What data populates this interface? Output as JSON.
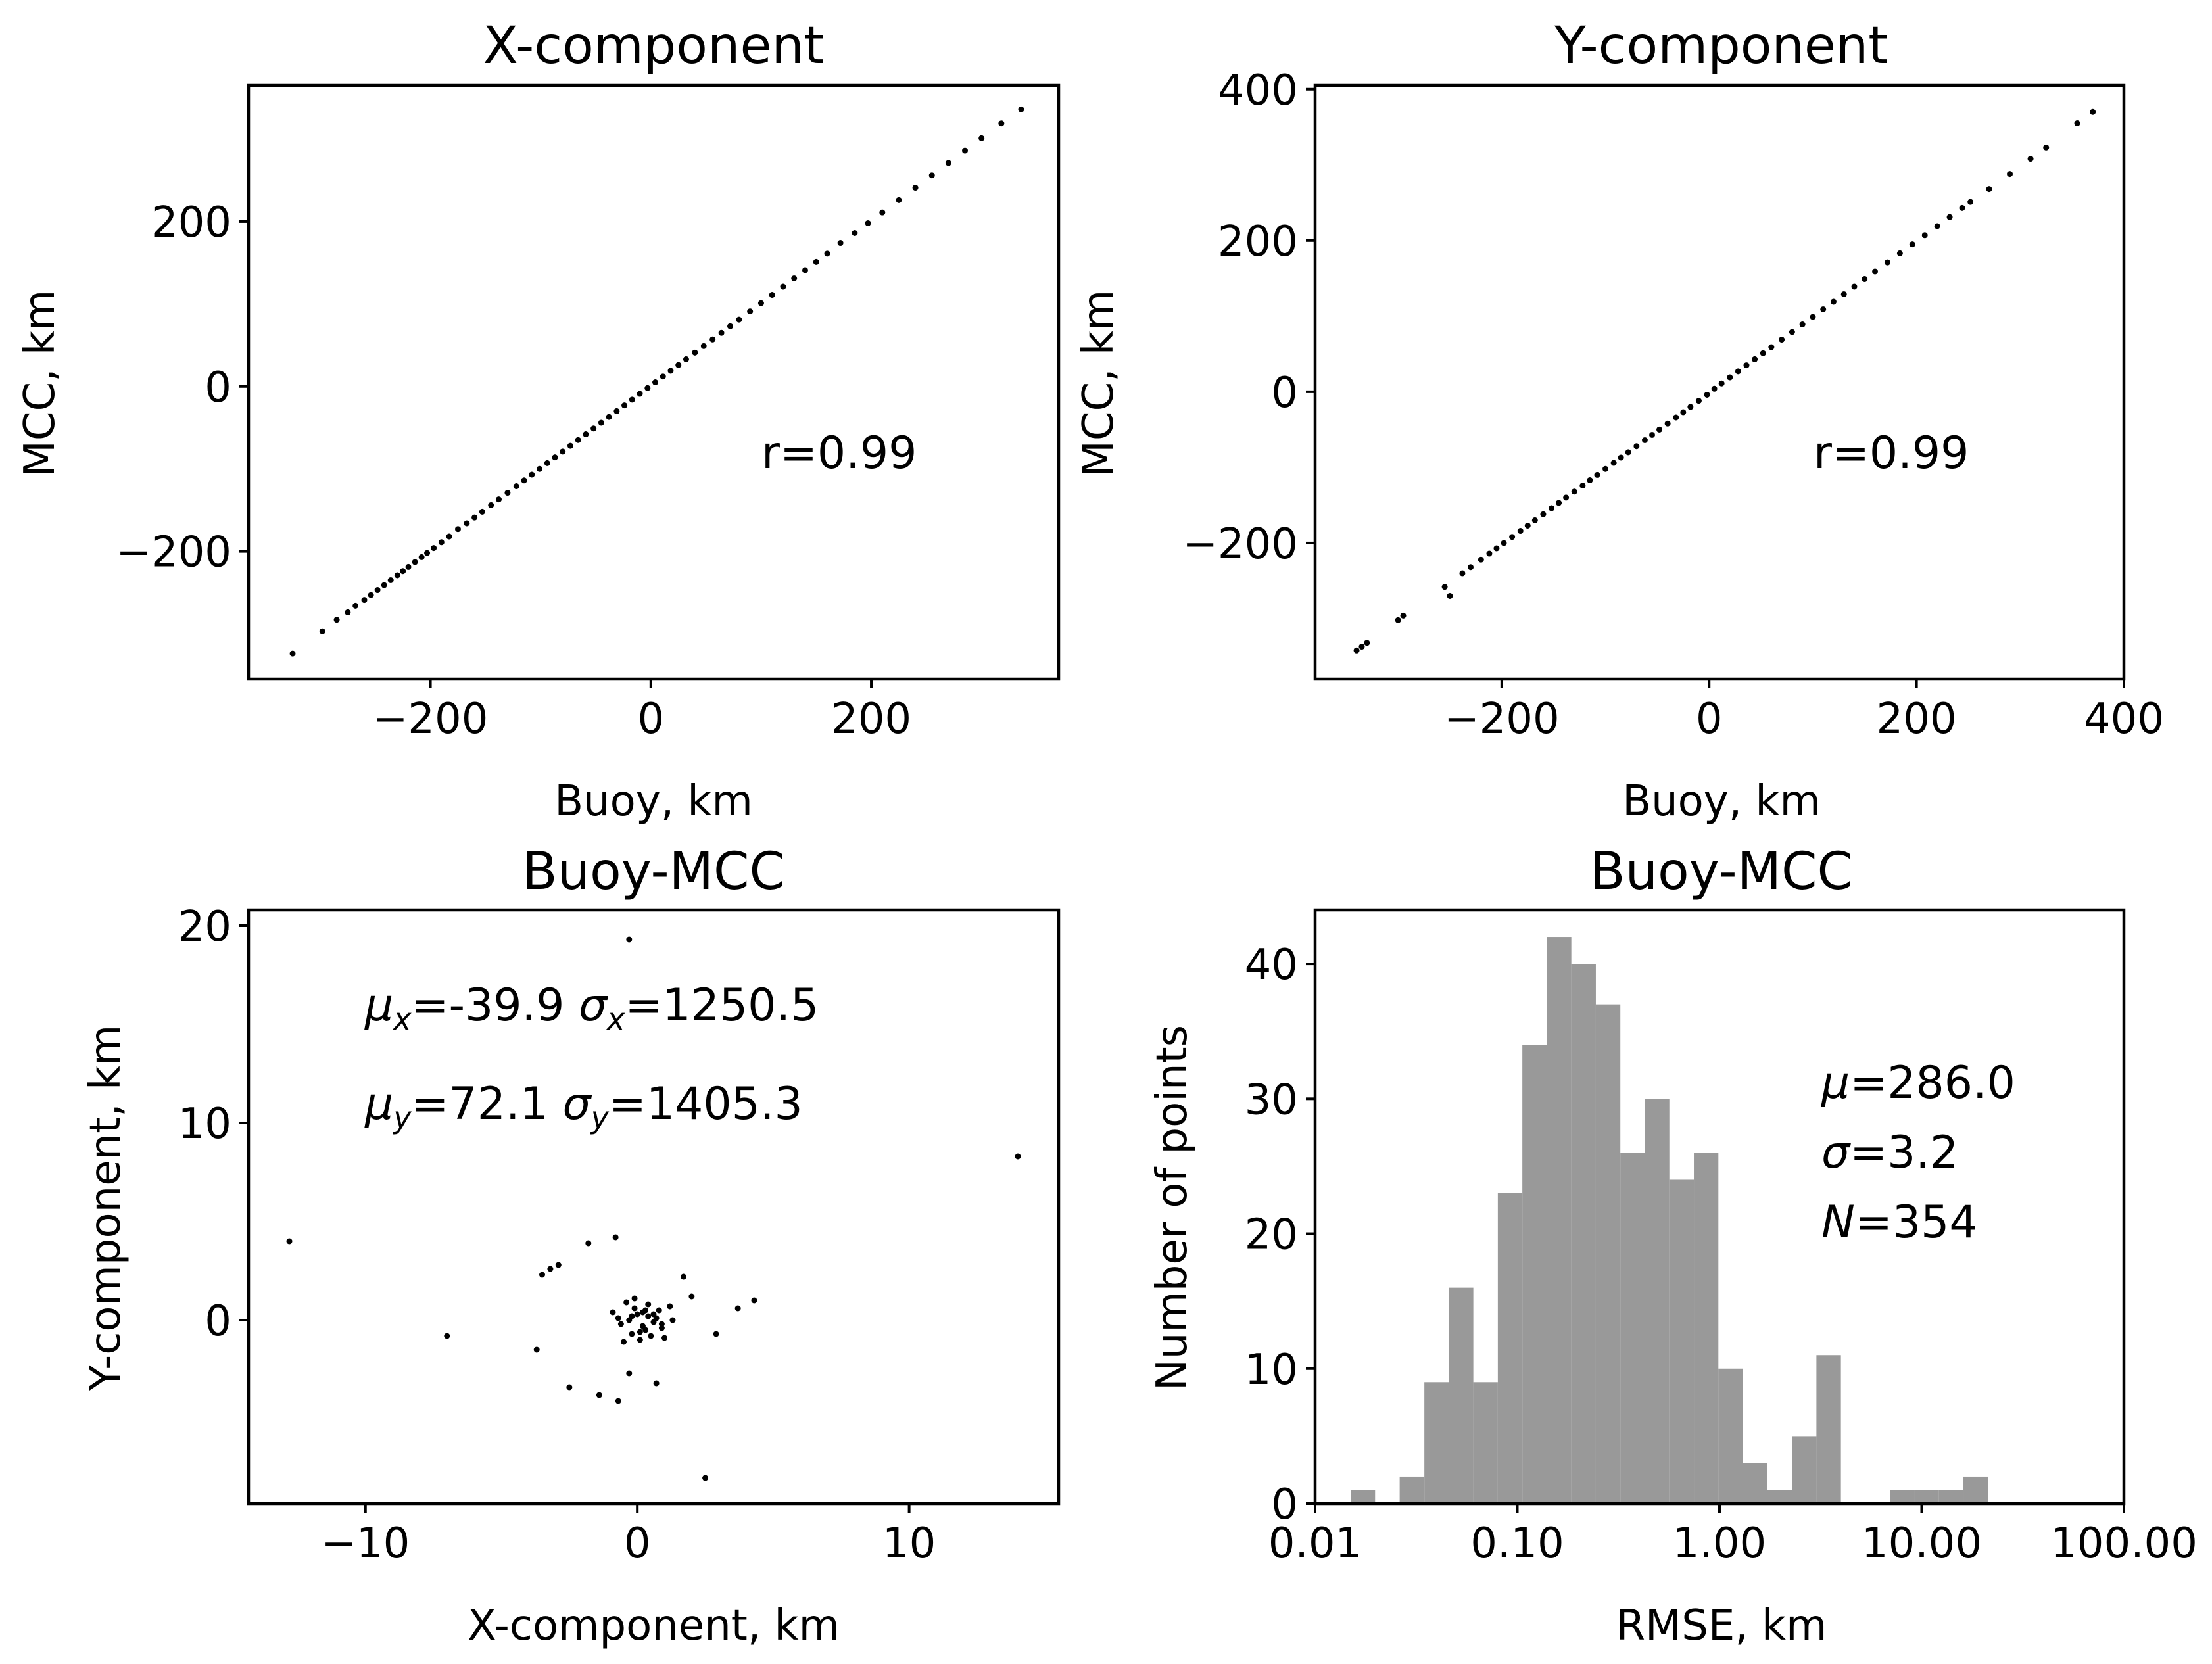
{
  "figure": {
    "panels": [
      "x_component",
      "y_component",
      "diff_scatter",
      "rmse_hist"
    ]
  },
  "chart_data": [
    {
      "id": "x_component",
      "type": "scatter",
      "title": "X-component",
      "xlabel": "Buoy, km",
      "ylabel": "MCC, km",
      "xlim": [
        -365,
        370
      ],
      "ylim": [
        -355,
        365
      ],
      "xticks": [
        -200,
        0,
        200
      ],
      "xtick_labels": [
        "−200",
        "0",
        "200"
      ],
      "yticks": [
        -200,
        0,
        200
      ],
      "ytick_labels": [
        "−200",
        "0",
        "200"
      ],
      "grid": false,
      "annotation": "r=0.99",
      "marker_color": "#000000",
      "series": [
        {
          "x": [
            -325,
            -298,
            -285,
            -275,
            -268,
            -260,
            -254,
            -248,
            -242,
            -236,
            -230,
            -225,
            -220,
            -214,
            -208,
            -203,
            -197,
            -190,
            -183,
            -175,
            -167,
            -160,
            -153,
            -145,
            -138,
            -130,
            -122,
            -115,
            -108,
            -101,
            -94,
            -87,
            -80,
            -73,
            -66,
            -59,
            -52,
            -45,
            -38,
            -31,
            -24,
            -17,
            -10,
            -3,
            4,
            11,
            18,
            25,
            32,
            40,
            48,
            56,
            64,
            72,
            80,
            90,
            100,
            110,
            120,
            130,
            140,
            150,
            160,
            172,
            185,
            197,
            210,
            225,
            240,
            255,
            270,
            285,
            300,
            318,
            336
          ],
          "y": [
            -324,
            -297,
            -283,
            -274,
            -266,
            -259,
            -253,
            -247,
            -241,
            -235,
            -229,
            -224,
            -219,
            -213,
            -207,
            -202,
            -196,
            -189,
            -182,
            -173,
            -166,
            -159,
            -152,
            -144,
            -137,
            -129,
            -121,
            -114,
            -107,
            -100,
            -93,
            -86,
            -79,
            -72,
            -65,
            -58,
            -51,
            -44,
            -37,
            -30,
            -23,
            -16,
            -9,
            -2,
            5,
            12,
            19,
            26,
            33,
            41,
            49,
            57,
            65,
            73,
            81,
            91,
            101,
            111,
            121,
            131,
            141,
            151,
            161,
            174,
            186,
            198,
            211,
            226,
            241,
            256,
            271,
            286,
            301,
            319,
            336
          ]
        }
      ]
    },
    {
      "id": "y_component",
      "type": "scatter",
      "title": "Y-component",
      "xlabel": "Buoy, km",
      "ylabel": "MCC, km",
      "xlim": [
        -380,
        400
      ],
      "ylim": [
        -380,
        405
      ],
      "xticks": [
        -200,
        0,
        200,
        400
      ],
      "xtick_labels": [
        "−200",
        "0",
        "200",
        "400"
      ],
      "yticks": [
        -200,
        0,
        200,
        400
      ],
      "ytick_labels": [
        "−200",
        "0",
        "200",
        "400"
      ],
      "grid": false,
      "annotation": "r=0.99",
      "marker_color": "#000000",
      "series": [
        {
          "x": [
            -340,
            -335,
            -330,
            -300,
            -295,
            -255,
            -250,
            -238,
            -230,
            -220,
            -212,
            -205,
            -198,
            -190,
            -182,
            -175,
            -168,
            -160,
            -152,
            -145,
            -138,
            -130,
            -122,
            -115,
            -108,
            -100,
            -92,
            -85,
            -78,
            -70,
            -62,
            -55,
            -48,
            -40,
            -32,
            -25,
            -18,
            -10,
            -2,
            5,
            12,
            20,
            28,
            36,
            44,
            52,
            60,
            70,
            80,
            90,
            100,
            110,
            120,
            130,
            140,
            150,
            160,
            172,
            184,
            196,
            208,
            220,
            232,
            244,
            252,
            270,
            290,
            310,
            325,
            355,
            370
          ],
          "y": [
            -342,
            -337,
            -332,
            -302,
            -296,
            -258,
            -270,
            -240,
            -232,
            -222,
            -214,
            -207,
            -200,
            -192,
            -184,
            -177,
            -170,
            -162,
            -154,
            -147,
            -140,
            -132,
            -124,
            -117,
            -110,
            -102,
            -94,
            -87,
            -80,
            -72,
            -64,
            -57,
            -50,
            -42,
            -34,
            -27,
            -20,
            -12,
            -4,
            4,
            11,
            19,
            27,
            35,
            43,
            51,
            59,
            69,
            79,
            89,
            99,
            109,
            119,
            129,
            139,
            149,
            159,
            171,
            183,
            195,
            207,
            219,
            231,
            243,
            251,
            268,
            288,
            308,
            323,
            355,
            370
          ]
        }
      ]
    },
    {
      "id": "diff_scatter",
      "type": "scatter",
      "title": "Buoy-MCC",
      "xlabel": "X-component, km",
      "ylabel": "Y-component, km",
      "xlim": [
        -14.3,
        15.5
      ],
      "ylim": [
        -9.3,
        20.8
      ],
      "xticks": [
        -10,
        0,
        10
      ],
      "xtick_labels": [
        "−10",
        "0",
        "10"
      ],
      "yticks": [
        0,
        10,
        20
      ],
      "ytick_labels": [
        "0",
        "10",
        "20"
      ],
      "grid": false,
      "annotation_lines": [
        {
          "mu_label": "μ",
          "mu_sub": "x",
          "mu_value": "=-39.9 ",
          "sigma_label": "σ",
          "sigma_sub": "x",
          "sigma_value": "=1250.5"
        },
        {
          "mu_label": "μ",
          "mu_sub": "y",
          "mu_value": "=72.1 ",
          "sigma_label": "σ",
          "sigma_sub": "y",
          "sigma_value": "=1405.3"
        }
      ],
      "marker_color": "#000000",
      "series": [
        {
          "x": [
            -0.3,
            14.0,
            -12.8,
            -7.0,
            -3.5,
            -3.2,
            -2.9,
            -0.8,
            -1.8,
            -3.7,
            -2.5,
            -1.4,
            -0.7,
            -0.3,
            0.7,
            1.7,
            2.0,
            3.7,
            4.3,
            2.9,
            2.5,
            -0.4,
            -0.1,
            0.3,
            0.6,
            0.9,
            1.2,
            -0.6,
            -0.2,
            0.1,
            0.4,
            0.7,
            -0.9,
            1.0,
            0.2,
            -0.5,
            0.5,
            -0.3,
            0.8,
            0.0,
            0.3,
            -0.1,
            0.6,
            0.2,
            -0.7,
            1.3,
            0.9,
            -0.2,
            0.4,
            0.1
          ],
          "y": [
            19.3,
            8.3,
            4.0,
            -0.8,
            2.3,
            2.6,
            2.8,
            4.2,
            3.9,
            -1.5,
            -3.4,
            -3.8,
            -4.1,
            -2.7,
            -3.2,
            2.2,
            1.2,
            0.6,
            1.0,
            -0.7,
            -8.0,
            0.9,
            1.1,
            0.5,
            0.3,
            -0.4,
            0.7,
            -0.2,
            0.2,
            -0.6,
            0.8,
            0.1,
            0.4,
            -0.9,
            -0.3,
            -1.1,
            -0.8,
            0.0,
            0.5,
            0.3,
            -0.5,
            0.6,
            -0.1,
            0.4,
            0.1,
            0.0,
            -0.2,
            -0.7,
            0.2,
            -1.0
          ]
        }
      ]
    },
    {
      "id": "rmse_hist",
      "type": "bar",
      "title": "Buoy-MCC",
      "xlabel": "RMSE, km",
      "ylabel": "Number of points",
      "x_scale": "log",
      "xlim": [
        0.01,
        100.0
      ],
      "ylim": [
        0,
        44
      ],
      "xticks": [
        0.01,
        0.1,
        1.0,
        10.0,
        100.0
      ],
      "xtick_labels": [
        "0.01",
        "0.10",
        "1.00",
        "10.00",
        "100.00"
      ],
      "yticks": [
        0,
        10,
        20,
        30,
        40
      ],
      "ytick_labels": [
        "0",
        "10",
        "20",
        "30",
        "40"
      ],
      "grid": false,
      "bar_color": "#999999",
      "annotation_lines": [
        {
          "label": "μ",
          "value": "=286.0"
        },
        {
          "label": "σ",
          "value": "=3.2"
        },
        {
          "label": "N",
          "value": "=354"
        }
      ],
      "bin_edges": [
        0.015,
        0.0198,
        0.0262,
        0.0347,
        0.0458,
        0.0606,
        0.0801,
        0.1059,
        0.14,
        0.185,
        0.2446,
        0.3233,
        0.4274,
        0.565,
        0.7469,
        0.9874,
        1.3052,
        1.7254,
        2.2809,
        3.0151,
        3.9857,
        5.2688,
        6.965,
        9.2072,
        12.1712,
        16.0894,
        21.269
      ],
      "values": [
        1,
        0,
        2,
        9,
        16,
        9,
        23,
        34,
        42,
        40,
        37,
        26,
        30,
        24,
        26,
        10,
        3,
        1,
        5,
        11,
        0,
        0,
        1,
        1,
        1,
        2
      ]
    }
  ]
}
